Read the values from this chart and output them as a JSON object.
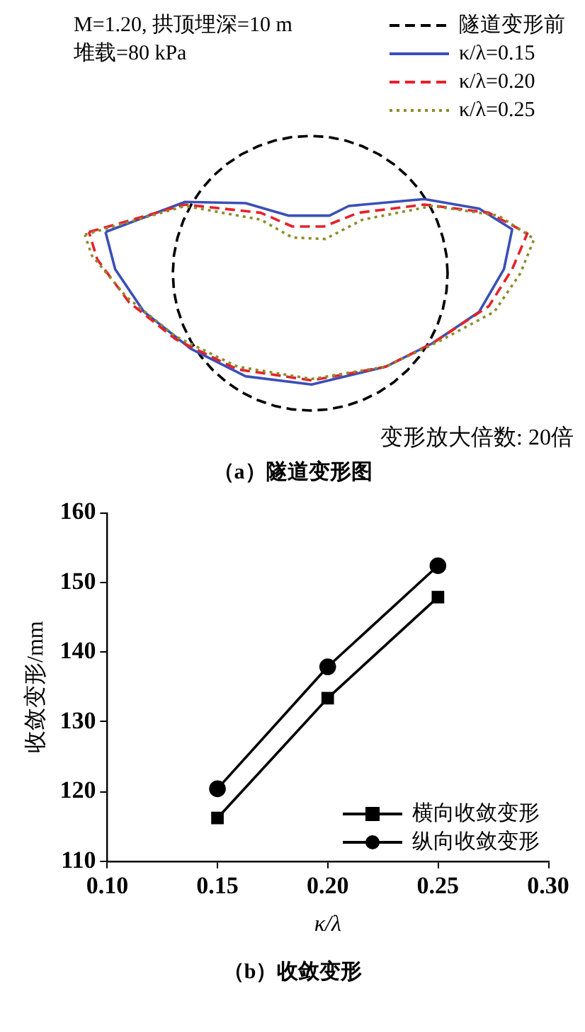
{
  "chart_data": [
    {
      "type": "other",
      "title": "（a）隧道变形图",
      "legend": "top right",
      "annotations": [
        "M=1.20, 拱顶埋深=10 m",
        "堆载=80 kPa",
        "变形放大倍数: 20倍"
      ],
      "series": [
        {
          "name": "隧道变形前",
          "color": "#000000",
          "line_style": "dashed"
        },
        {
          "name": "κ/λ=0.15",
          "color": "#3a4fb8",
          "line_style": "solid"
        },
        {
          "name": "κ/λ=0.20",
          "color": "#e8202a",
          "line_style": "dashed"
        },
        {
          "name": "κ/λ=0.25",
          "color": "#8c8c2a",
          "line_style": "dotted"
        }
      ]
    },
    {
      "type": "line",
      "title": "（b）收敛变形",
      "xlabel": "κ/λ",
      "ylabel": "收敛变形/mm",
      "legend": "bottom right",
      "x": [
        0.15,
        0.2,
        0.25
      ],
      "xlim": [
        0.1,
        0.3
      ],
      "xticks": [
        {
          "value": 0.1,
          "label": "0.10"
        },
        0.15,
        {
          "value": 0.2,
          "label": "0.20"
        },
        0.25,
        {
          "value": 0.3,
          "label": "0.30"
        }
      ],
      "ylim": [
        110,
        160
      ],
      "yticks": [
        110,
        120,
        130,
        140,
        150,
        160
      ],
      "series": [
        {
          "name": "横向收敛变形",
          "color": "#000000",
          "marker": "square",
          "line_style": "solid",
          "values": [
            116.2,
            133.4,
            147.9
          ]
        },
        {
          "name": "纵向收敛变形",
          "color": "#000000",
          "marker": "circle",
          "line_style": "solid",
          "values": [
            120.4,
            137.9,
            152.4
          ]
        }
      ]
    }
  ]
}
